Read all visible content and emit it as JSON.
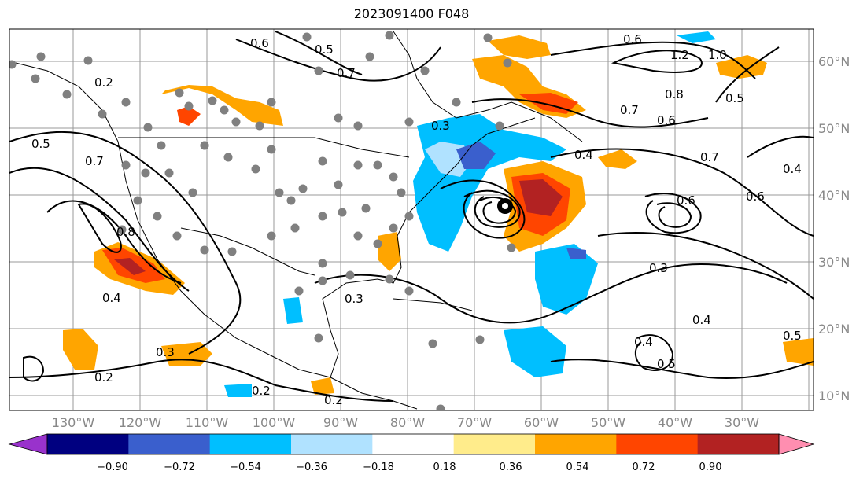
{
  "title": "2023091400 F048",
  "map": {
    "lon_labels": [
      "130°W",
      "120°W",
      "110°W",
      "100°W",
      "90°W",
      "80°W",
      "70°W",
      "60°W",
      "50°W",
      "40°W",
      "30°W"
    ],
    "lat_labels": [
      "60°N",
      "50°N",
      "40°N",
      "30°N",
      "20°N",
      "10°N"
    ],
    "contour_labels": [
      "0.6",
      "0.5",
      "0.7",
      "0.6",
      "1.2",
      "1.0",
      "0.2",
      "0.8",
      "0.5",
      "0.7",
      "0.6",
      "0.5",
      "0.3",
      "0.7",
      "0.4",
      "0.7",
      "0.6",
      "0.4",
      "0.6",
      "0.8",
      "0.3",
      "0.4",
      "0.3",
      "0.4",
      "0.5",
      "0.4",
      "0.5",
      "0.3",
      "0.2",
      "0.2",
      "0.2"
    ],
    "colors": {
      "contour": "#000000",
      "grid": "#888888",
      "state_border": "#000000"
    }
  },
  "colorbar": {
    "ticks": [
      "−0.90",
      "−0.72",
      "−0.54",
      "−0.36",
      "−0.18",
      "0.18",
      "0.36",
      "0.54",
      "0.72",
      "0.90"
    ],
    "colors": [
      "#9932CC",
      "#000080",
      "#3A5FCD",
      "#00BFFF",
      "#B0E2FF",
      "#FFFFFF",
      "#FFEC8B",
      "#FFA500",
      "#FF4500",
      "#B22222",
      "#FF8EB0"
    ]
  }
}
